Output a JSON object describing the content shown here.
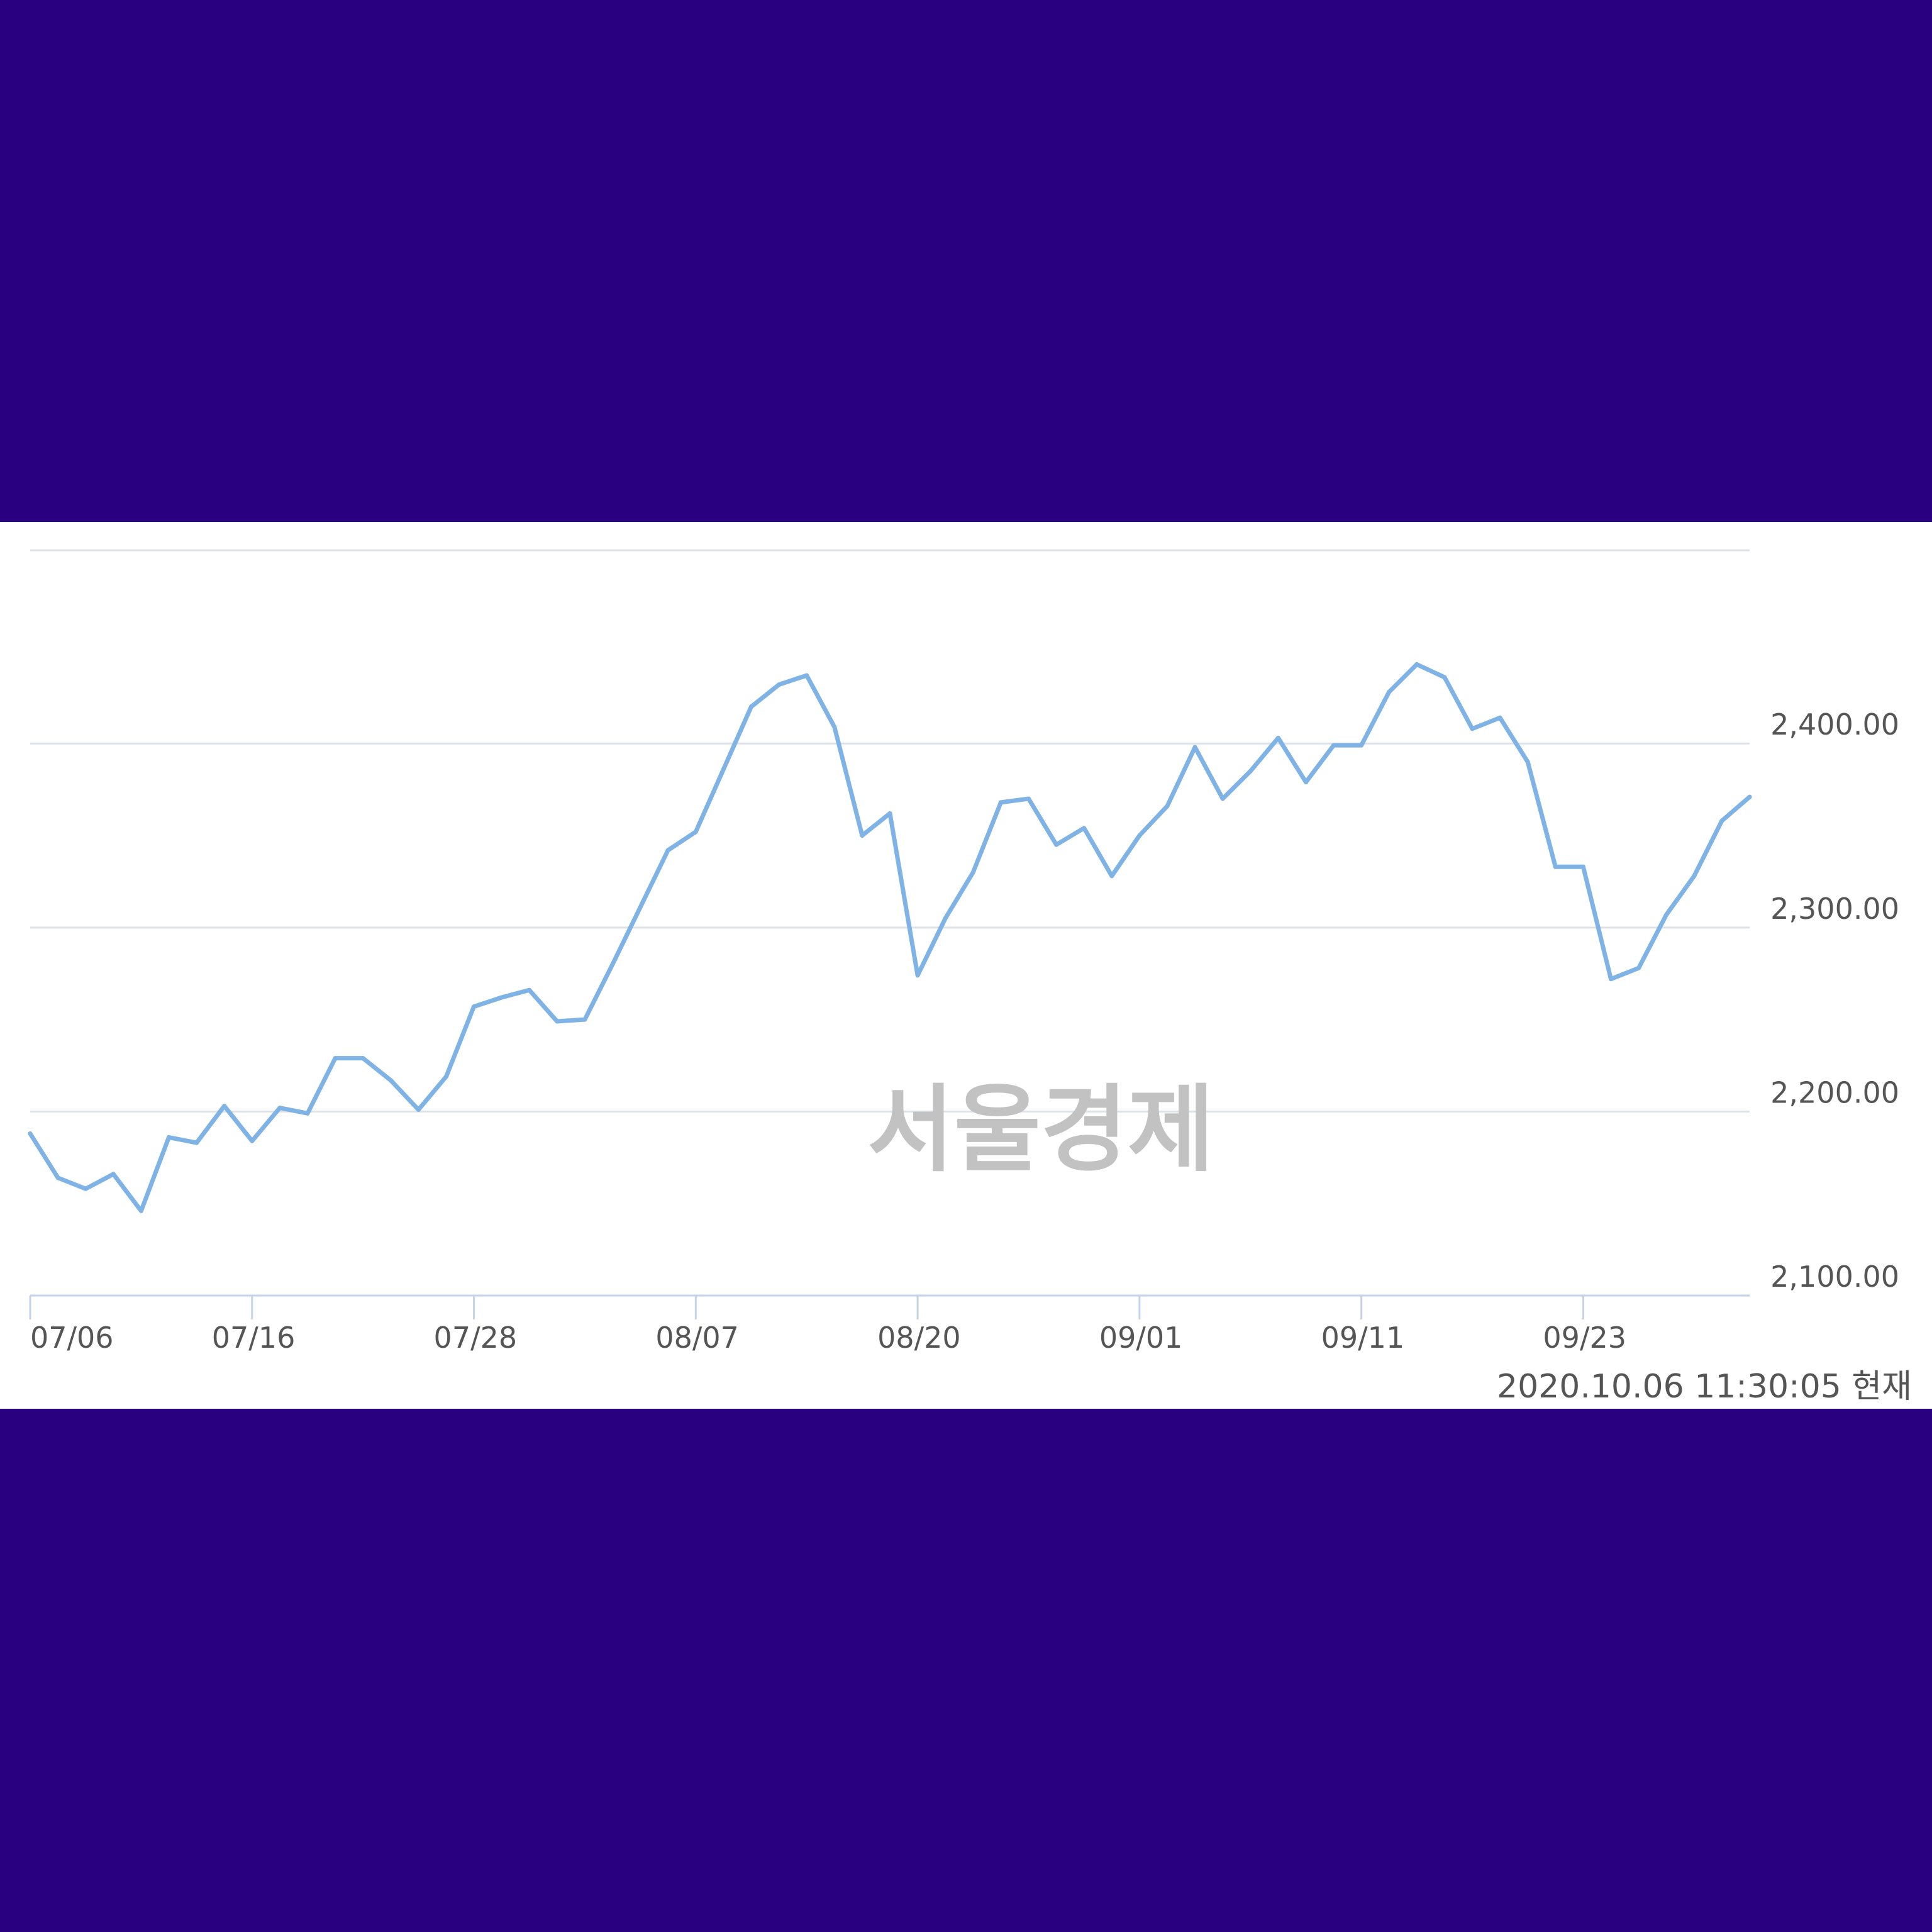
{
  "colors": {
    "background": "#280080",
    "panel": "#ffffff",
    "line": "#7fb3e6",
    "grid": "#dde1e8",
    "text": "#555555",
    "watermark": "#c2c2c2"
  },
  "watermark": "서울경제",
  "timestamp": "2020.10.06 11:30:05 현재",
  "chart_data": {
    "type": "line",
    "title": "",
    "xlabel": "",
    "ylabel": "",
    "ylim": [
      2100,
      2505
    ],
    "yticks": [
      2100,
      2200,
      2300,
      2400
    ],
    "ytick_labels": [
      "2,100.00",
      "2,200.00",
      "2,300.00",
      "2,400.00"
    ],
    "yaxis_position": "right",
    "grid": true,
    "xticks": [
      {
        "index": 0,
        "label": "07/06"
      },
      {
        "index": 8,
        "label": "07/16"
      },
      {
        "index": 16,
        "label": "07/28"
      },
      {
        "index": 24,
        "label": "08/07"
      },
      {
        "index": 32,
        "label": "08/20"
      },
      {
        "index": 40,
        "label": "09/01"
      },
      {
        "index": 48,
        "label": "09/11"
      },
      {
        "index": 56,
        "label": "09/23"
      }
    ],
    "series": [
      {
        "values": [
          2188,
          2164,
          2158,
          2166,
          2146,
          2186,
          2183,
          2203,
          2184,
          2202,
          2199,
          2229,
          2229,
          2217,
          2201,
          2219,
          2257,
          2262,
          2266,
          2249,
          2250,
          2280,
          2311,
          2342,
          2352,
          2386,
          2420,
          2432,
          2437,
          2409,
          2350,
          2362,
          2274,
          2305,
          2330,
          2368,
          2370,
          2345,
          2354,
          2328,
          2350,
          2366,
          2398,
          2370,
          2385,
          2403,
          2379,
          2399,
          2399,
          2428,
          2443,
          2436,
          2408,
          2414,
          2390,
          2333,
          2333,
          2272,
          2278,
          2307,
          2328,
          2358,
          2371
        ]
      }
    ]
  }
}
